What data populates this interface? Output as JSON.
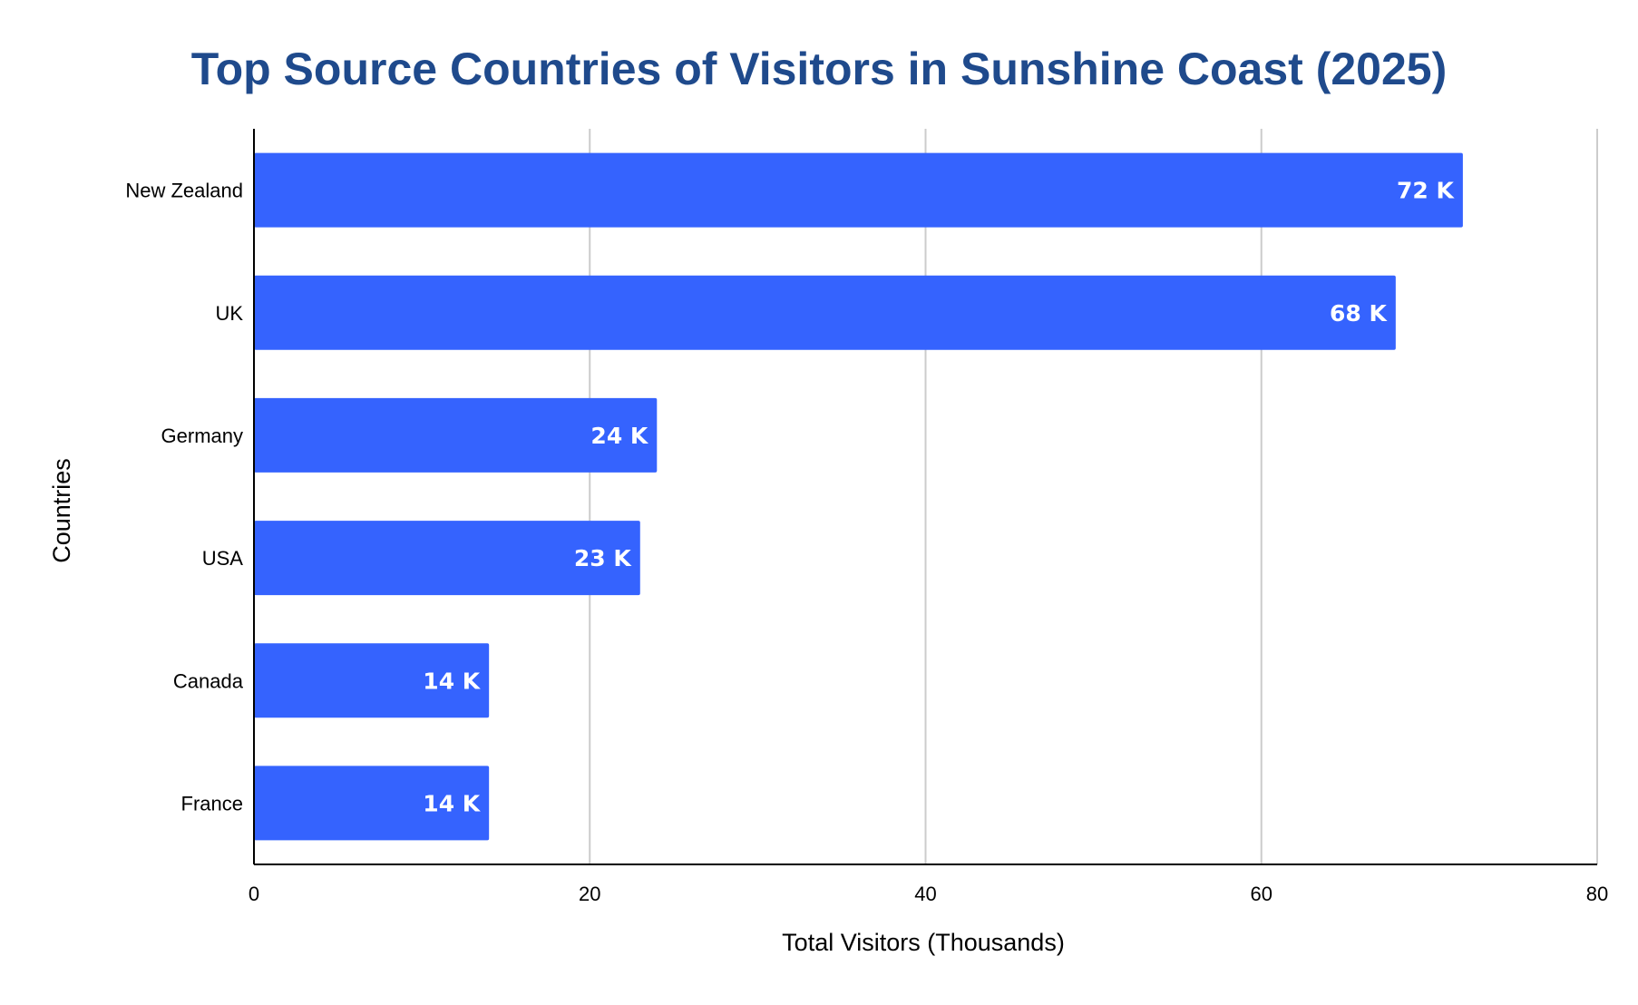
{
  "chart_data": {
    "type": "bar",
    "orientation": "horizontal",
    "title": "Top Source Countries of Visitors in Sunshine Coast (2025)",
    "xlabel": "Total Visitors (Thousands)",
    "ylabel": "Countries",
    "categories": [
      "New Zealand",
      "UK",
      "Germany",
      "USA",
      "Canada",
      "France"
    ],
    "values": [
      72,
      68,
      24,
      23,
      14,
      14
    ],
    "data_labels": [
      "72 K",
      "68 K",
      "24 K",
      "23 K",
      "14 K",
      "14 K"
    ],
    "xlim": [
      0,
      80
    ],
    "xticks": [
      0,
      20,
      40,
      60,
      80
    ],
    "grid": true,
    "colors": {
      "bar": "#3563FE",
      "title": "#1F4A8C",
      "grid": "#CCCCCC",
      "axis": "#000000",
      "data_label": "#FFFFFF"
    }
  }
}
